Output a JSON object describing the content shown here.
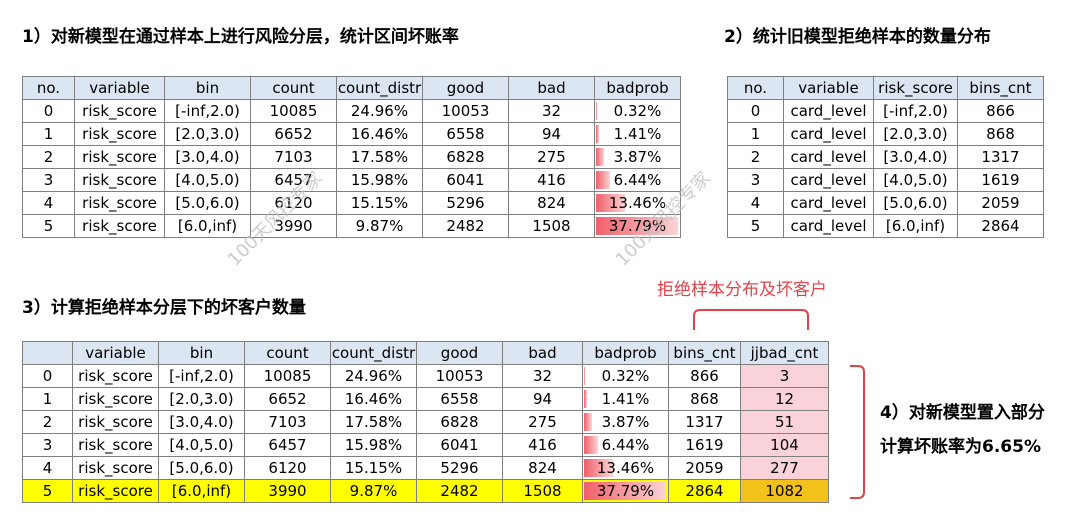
{
  "section1": {
    "title": "1）对新模型在通过样本上进行风险分层，统计区间坏账率",
    "headers": [
      "no.",
      "variable",
      "bin",
      "count",
      "count_distr",
      "good",
      "bad",
      "badprob"
    ],
    "rows": [
      {
        "no": "0",
        "variable": "risk_score",
        "bin": "[-inf,2.0)",
        "count": "10085",
        "count_distr": "24.96%",
        "good": "10053",
        "bad": "32",
        "badprob": "0.32%",
        "badprob_value": 0.0032
      },
      {
        "no": "1",
        "variable": "risk_score",
        "bin": "[2.0,3.0)",
        "count": "6652",
        "count_distr": "16.46%",
        "good": "6558",
        "bad": "94",
        "badprob": "1.41%",
        "badprob_value": 0.0141
      },
      {
        "no": "2",
        "variable": "risk_score",
        "bin": "[3.0,4.0)",
        "count": "7103",
        "count_distr": "17.58%",
        "good": "6828",
        "bad": "275",
        "badprob": "3.87%",
        "badprob_value": 0.0387
      },
      {
        "no": "3",
        "variable": "risk_score",
        "bin": "[4.0,5.0)",
        "count": "6457",
        "count_distr": "15.98%",
        "good": "6041",
        "bad": "416",
        "badprob": "6.44%",
        "badprob_value": 0.0644
      },
      {
        "no": "4",
        "variable": "risk_score",
        "bin": "[5.0,6.0)",
        "count": "6120",
        "count_distr": "15.15%",
        "good": "5296",
        "bad": "824",
        "badprob": "13.46%",
        "badprob_value": 0.1346
      },
      {
        "no": "5",
        "variable": "risk_score",
        "bin": "[6.0,inf)",
        "count": "3990",
        "count_distr": "9.87%",
        "good": "2482",
        "bad": "1508",
        "badprob": "37.79%",
        "badprob_value": 0.3779
      }
    ]
  },
  "section2": {
    "title": "2）统计旧模型拒绝样本的数量分布",
    "headers": [
      "no.",
      "variable",
      "risk_score",
      "bins_cnt"
    ],
    "rows": [
      {
        "no": "0",
        "variable": "card_level",
        "risk_score": "[-inf,2.0)",
        "bins_cnt": "866"
      },
      {
        "no": "1",
        "variable": "card_level",
        "risk_score": "[2.0,3.0)",
        "bins_cnt": "868"
      },
      {
        "no": "2",
        "variable": "card_level",
        "risk_score": "[3.0,4.0)",
        "bins_cnt": "1317"
      },
      {
        "no": "3",
        "variable": "card_level",
        "risk_score": "[4.0,5.0)",
        "bins_cnt": "1619"
      },
      {
        "no": "4",
        "variable": "card_level",
        "risk_score": "[5.0,6.0)",
        "bins_cnt": "2059"
      },
      {
        "no": "5",
        "variable": "card_level",
        "risk_score": "[6.0,inf)",
        "bins_cnt": "2864"
      }
    ]
  },
  "section3": {
    "title": "3）计算拒绝样本分层下的坏客户数量",
    "annotation": "拒绝样本分布及坏客户",
    "headers": [
      "",
      "variable",
      "bin",
      "count",
      "count_distr",
      "good",
      "bad",
      "badprob",
      "bins_cnt",
      "jjbad_cnt"
    ],
    "rows": [
      {
        "no": "0",
        "variable": "risk_score",
        "bin": "[-inf,2.0)",
        "count": "10085",
        "count_distr": "24.96%",
        "good": "10053",
        "bad": "32",
        "badprob": "0.32%",
        "badprob_value": 0.0032,
        "bins_cnt": "866",
        "jjbad_cnt": "3"
      },
      {
        "no": "1",
        "variable": "risk_score",
        "bin": "[2.0,3.0)",
        "count": "6652",
        "count_distr": "16.46%",
        "good": "6558",
        "bad": "94",
        "badprob": "1.41%",
        "badprob_value": 0.0141,
        "bins_cnt": "868",
        "jjbad_cnt": "12"
      },
      {
        "no": "2",
        "variable": "risk_score",
        "bin": "[3.0,4.0)",
        "count": "7103",
        "count_distr": "17.58%",
        "good": "6828",
        "bad": "275",
        "badprob": "3.87%",
        "badprob_value": 0.0387,
        "bins_cnt": "1317",
        "jjbad_cnt": "51"
      },
      {
        "no": "3",
        "variable": "risk_score",
        "bin": "[4.0,5.0)",
        "count": "6457",
        "count_distr": "15.98%",
        "good": "6041",
        "bad": "416",
        "badprob": "6.44%",
        "badprob_value": 0.0644,
        "bins_cnt": "1619",
        "jjbad_cnt": "104"
      },
      {
        "no": "4",
        "variable": "risk_score",
        "bin": "[5.0,6.0)",
        "count": "6120",
        "count_distr": "15.15%",
        "good": "5296",
        "bad": "824",
        "badprob": "13.46%",
        "badprob_value": 0.1346,
        "bins_cnt": "2059",
        "jjbad_cnt": "277"
      },
      {
        "no": "5",
        "variable": "risk_score",
        "bin": "[6.0,inf)",
        "count": "3990",
        "count_distr": "9.87%",
        "good": "2482",
        "bad": "1508",
        "badprob": "37.79%",
        "badprob_value": 0.3779,
        "bins_cnt": "2864",
        "jjbad_cnt": "1082"
      }
    ]
  },
  "section4": {
    "line1": "4）对新模型置入部分",
    "line2": "计算坏账率为6.65%"
  },
  "watermark": "100天风控专家",
  "colors": {
    "header_bg": "#dbe6f2",
    "highlight": "#ffff00",
    "bar_red": "#f0606a",
    "annotation_red": "#e0444a",
    "jjbad_bg": "#f9d3d9"
  }
}
